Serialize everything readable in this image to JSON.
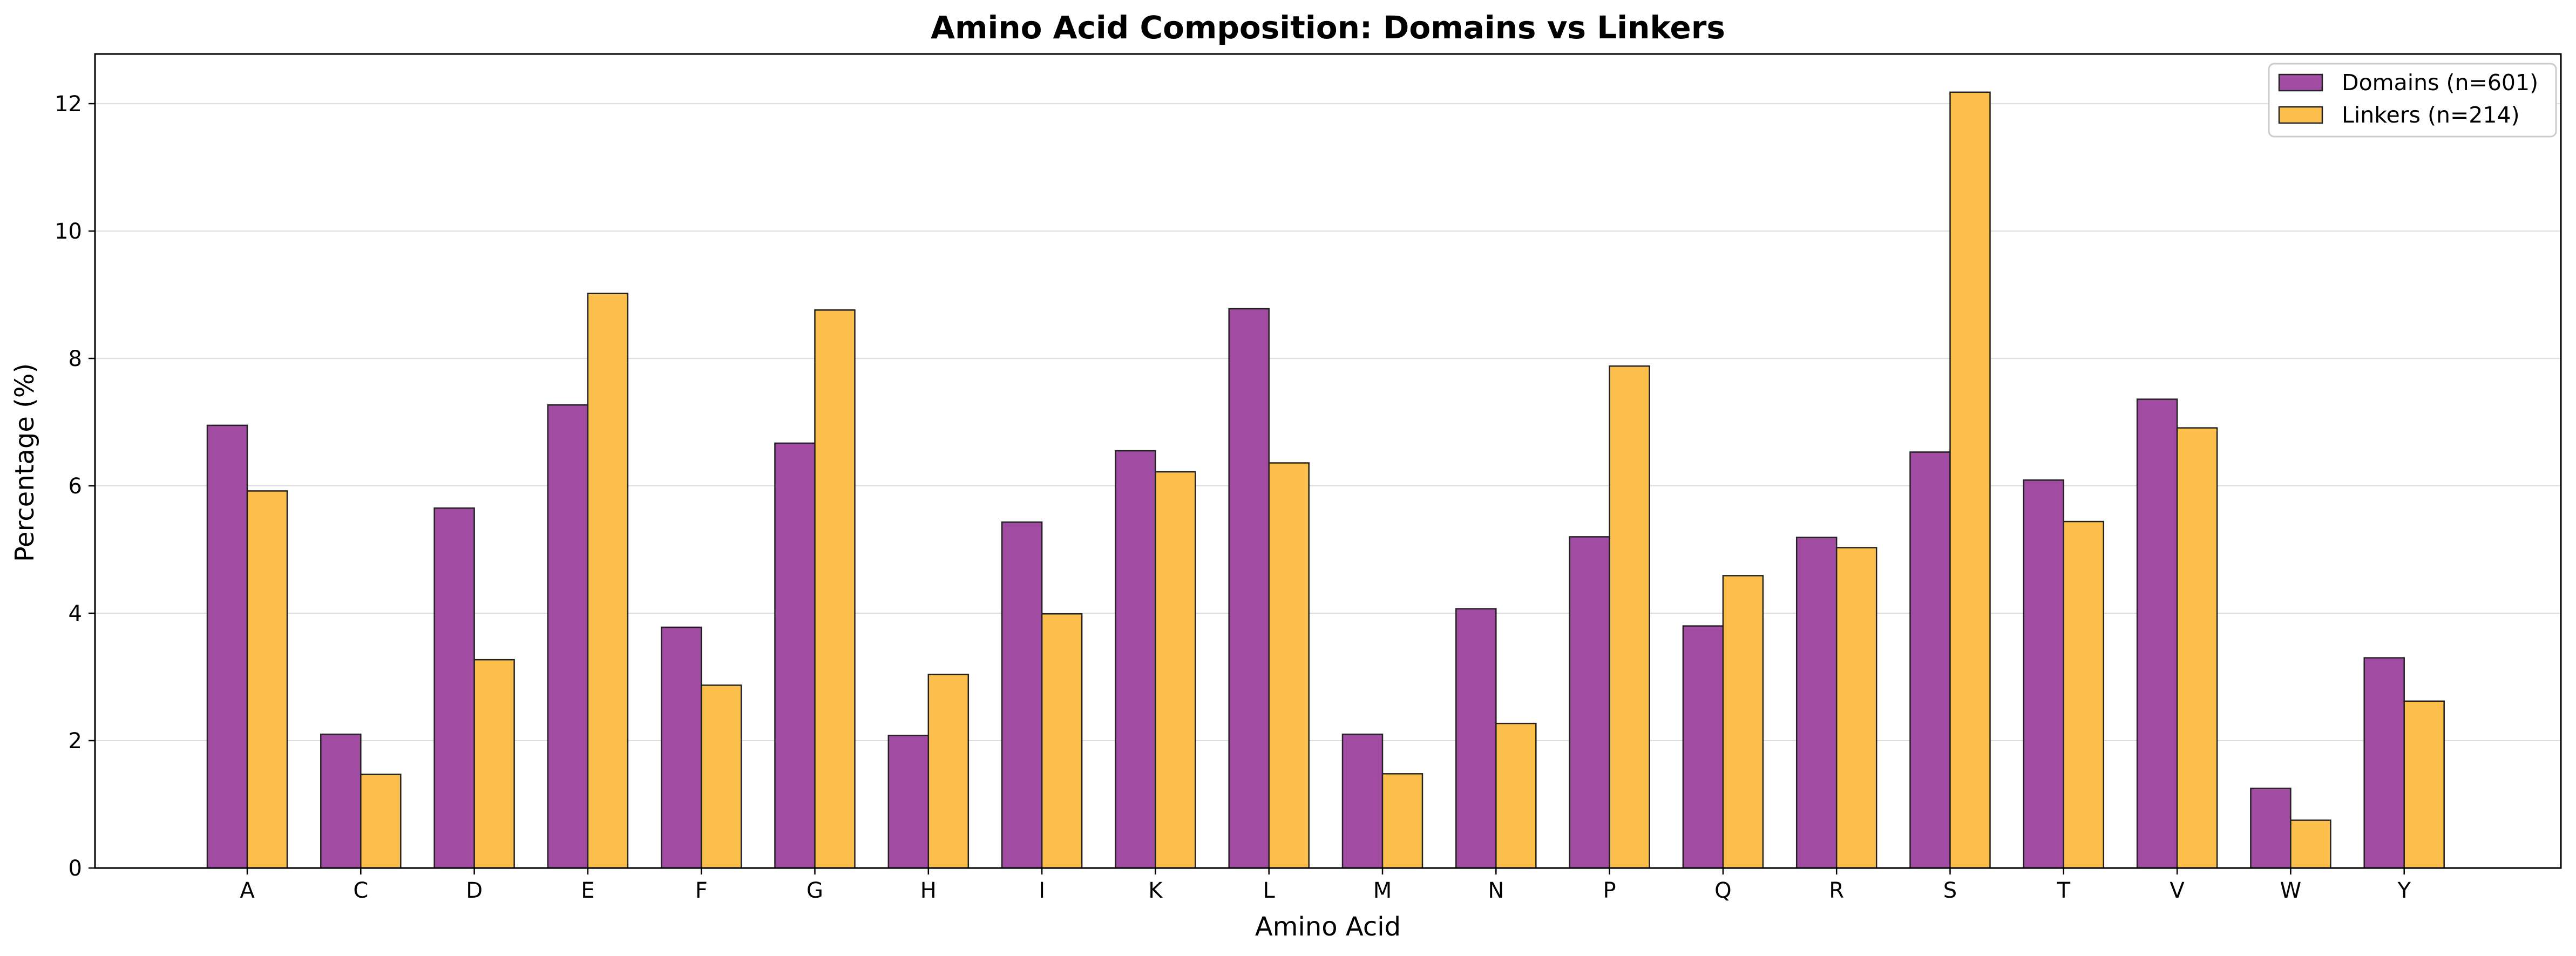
{
  "chart_data": {
    "type": "bar",
    "title": "Amino Acid Composition: Domains vs Linkers",
    "xlabel": "Amino Acid",
    "ylabel": "Percentage (%)",
    "categories": [
      "A",
      "C",
      "D",
      "E",
      "F",
      "G",
      "H",
      "I",
      "K",
      "L",
      "M",
      "N",
      "P",
      "Q",
      "R",
      "S",
      "T",
      "V",
      "W",
      "Y"
    ],
    "series": [
      {
        "name": "Domains (n=601)",
        "color": "#a24ba3",
        "values": [
          6.95,
          2.1,
          5.65,
          7.27,
          3.78,
          6.67,
          2.08,
          5.43,
          6.55,
          8.78,
          2.1,
          4.07,
          5.2,
          3.8,
          5.19,
          6.53,
          6.09,
          7.36,
          1.25,
          3.3
        ]
      },
      {
        "name": "Linkers (n=214)",
        "color": "#fdbf4c",
        "values": [
          5.92,
          1.47,
          3.27,
          9.02,
          2.87,
          8.76,
          3.04,
          3.99,
          6.22,
          6.36,
          1.48,
          2.27,
          7.88,
          4.59,
          5.03,
          12.18,
          5.44,
          6.91,
          0.75,
          2.62
        ]
      }
    ],
    "yticks": [
      0,
      2,
      4,
      6,
      8,
      10,
      12
    ],
    "ylim": [
      0,
      12.78
    ],
    "grid": "y",
    "legend": "top-right"
  }
}
